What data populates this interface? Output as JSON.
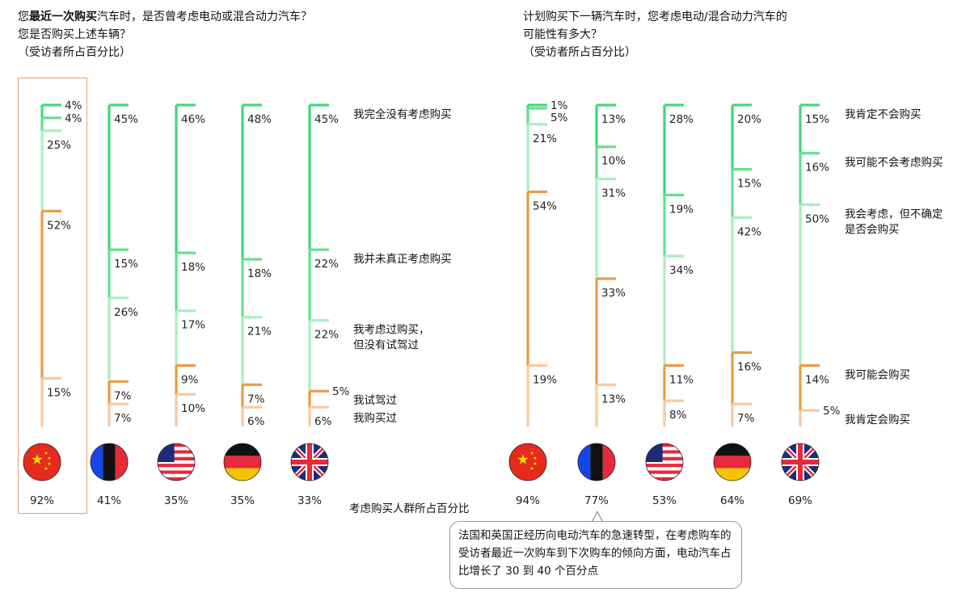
{
  "titles": {
    "left": {
      "line1_pre": "您",
      "line1_bold": "最近一次购买",
      "line1_post": "汽车时，是否曾考虑电动或混合动力汽车？",
      "line2": "您是否购买上述车辆？",
      "line3": "（受访者所占百分比）"
    },
    "right": {
      "line1": "计划购买下一辆汽车时，您考虑电动/混合动力汽车的",
      "line2": "可能性有多大？",
      "line3": "（受访者所占百分比）"
    }
  },
  "caption": "考虑购买人群所占百分比",
  "note": "法国和英国正经历向电动汽车的急速转型，在考虑购车的受访者最近一次购车到下次购车的倾向方面，电动汽车占比增长了 30 到 40 个百分点",
  "colors": {
    "segment_1": "#3fd97a",
    "segment_2": "#62e08e",
    "segment_3": "#a6f0c0",
    "segment_4": "#ee9a45",
    "segment_5": "#f8c9a0",
    "highlight": "#f0a060"
  },
  "chart_data": [
    {
      "type": "bar",
      "stacked": true,
      "orientation": "vertical",
      "categories": [
        "我完全没有考虑购买",
        "我并未真正考虑购买",
        "我考虑过购买，但没有试驾过",
        "我试驾过",
        "我购买过"
      ],
      "category_labels": [
        [
          "我完全没有考虑购买"
        ],
        [
          "我并未真正考虑购买"
        ],
        [
          "我考虑过购买，",
          "但没有试驾过"
        ],
        [
          "我试驾过"
        ],
        [
          "我购买过"
        ]
      ],
      "countries": [
        "cn-flag-icon",
        "fr-flag-icon",
        "us-flag-icon",
        "de-flag-icon",
        "uk-flag-icon"
      ],
      "values": [
        [
          4,
          4,
          25,
          52,
          15
        ],
        [
          45,
          15,
          26,
          7,
          7
        ],
        [
          46,
          18,
          17,
          9,
          10
        ],
        [
          48,
          18,
          21,
          7,
          6
        ],
        [
          45,
          22,
          22,
          5,
          6
        ]
      ],
      "labels": [
        [
          "4%",
          "4%",
          "25%",
          "52%",
          "15%"
        ],
        [
          "45%",
          "15%",
          "26%",
          "7%",
          "7%"
        ],
        [
          "46%",
          "18%",
          "17%",
          "9%",
          "10%"
        ],
        [
          "48%",
          "18%",
          "21%",
          "7%",
          "6%"
        ],
        [
          "45%",
          "22%",
          "22%",
          "5%",
          "6%"
        ]
      ],
      "considering": [
        "92%",
        "41%",
        "35%",
        "35%",
        "33%"
      ],
      "considering_values": [
        92,
        41,
        35,
        35,
        33
      ]
    },
    {
      "type": "bar",
      "stacked": true,
      "orientation": "vertical",
      "categories": [
        "我肯定不会购买",
        "我可能不会考虑购买",
        "我会考虑，但不确定是否会购买",
        "我可能会购买",
        "我肯定会购买"
      ],
      "category_labels": [
        [
          "我肯定不会购买"
        ],
        [
          "我可能不会考虑购买"
        ],
        [
          "我会考虑，但不确定",
          "是否会购买"
        ],
        [
          "我可能会购买"
        ],
        [
          "我肯定会购买"
        ]
      ],
      "countries": [
        "cn-flag-icon",
        "fr-flag-icon",
        "us-flag-icon",
        "de-flag-icon",
        "uk-flag-icon"
      ],
      "values": [
        [
          1,
          5,
          21,
          54,
          19
        ],
        [
          13,
          10,
          31,
          33,
          13
        ],
        [
          28,
          19,
          34,
          11,
          8
        ],
        [
          20,
          15,
          42,
          16,
          7
        ],
        [
          15,
          16,
          50,
          14,
          5
        ]
      ],
      "labels": [
        [
          "1%",
          "5%",
          "21%",
          "54%",
          "19%"
        ],
        [
          "13%",
          "10%",
          "31%",
          "33%",
          "13%"
        ],
        [
          "28%",
          "19%",
          "34%",
          "11%",
          "8%"
        ],
        [
          "20%",
          "15%",
          "42%",
          "16%",
          "7%"
        ],
        [
          "15%",
          "16%",
          "50%",
          "14%",
          "5%"
        ]
      ],
      "considering": [
        "94%",
        "77%",
        "53%",
        "64%",
        "69%"
      ],
      "considering_values": [
        94,
        77,
        53,
        64,
        69
      ]
    }
  ]
}
